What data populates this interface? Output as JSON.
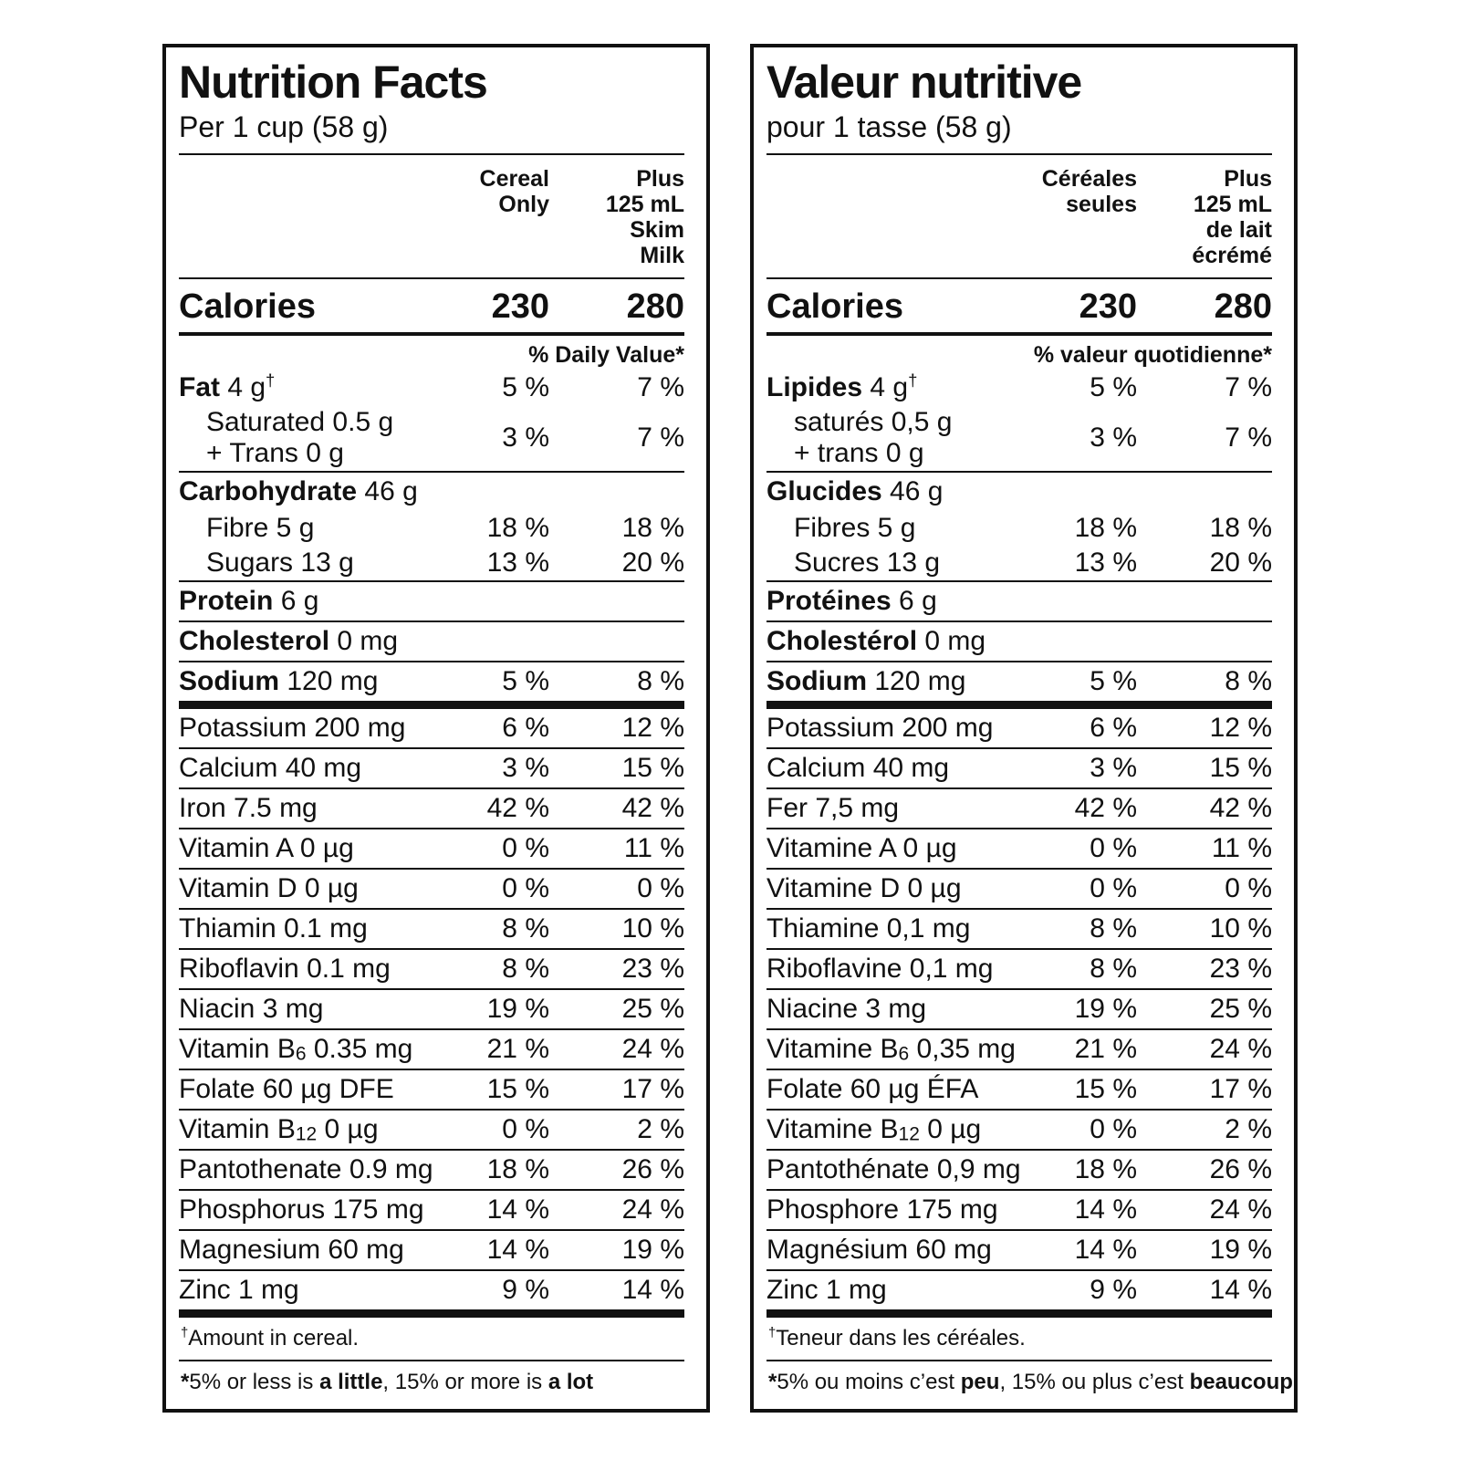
{
  "colors": {
    "background": "#ffffff",
    "text": "#111111",
    "border": "#111111"
  },
  "panels": [
    {
      "id": "english",
      "title": "Nutrition Facts",
      "serving": "Per 1 cup (58 g)",
      "columns": [
        [
          "Cereal",
          "Only"
        ],
        [
          "Plus",
          "125 mL",
          "Skim",
          "Milk"
        ]
      ],
      "calories": {
        "label": "Calories",
        "v1": "230",
        "v2": "280"
      },
      "dv_header": "% Daily Value*",
      "rows": [
        {
          "parts": [
            {
              "t": "Fat",
              "b": true
            },
            {
              "t": " 4 g"
            },
            {
              "t": "†",
              "sup": true
            }
          ],
          "v1": "5 %",
          "v2": "7 %",
          "rule": "none"
        },
        {
          "parts": [
            {
              "t": "Saturated 0.5 g"
            },
            {
              "br": true
            },
            {
              "t": "+ Trans 0 g"
            }
          ],
          "v1": "3 %",
          "v2": "7 %",
          "rule": "none",
          "indent": true
        },
        {
          "parts": [
            {
              "t": "Carbohydrate",
              "b": true
            },
            {
              "t": " 46 g"
            }
          ],
          "v1": "",
          "v2": "",
          "rule": "thin"
        },
        {
          "parts": [
            {
              "t": "Fibre 5 g"
            }
          ],
          "v1": "18 %",
          "v2": "18 %",
          "rule": "none",
          "indent": true
        },
        {
          "parts": [
            {
              "t": "Sugars 13 g"
            }
          ],
          "v1": "13 %",
          "v2": "20 %",
          "rule": "none",
          "indent": true
        },
        {
          "parts": [
            {
              "t": "Protein",
              "b": true
            },
            {
              "t": " 6 g"
            }
          ],
          "v1": "",
          "v2": "",
          "rule": "thin"
        },
        {
          "parts": [
            {
              "t": "Cholesterol",
              "b": true
            },
            {
              "t": " 0 mg"
            }
          ],
          "v1": "",
          "v2": "",
          "rule": "thin"
        },
        {
          "parts": [
            {
              "t": "Sodium",
              "b": true
            },
            {
              "t": " 120 mg"
            }
          ],
          "v1": "5 %",
          "v2": "8 %",
          "rule": "thin"
        },
        {
          "parts": [
            {
              "t": "Potassium 200 mg"
            }
          ],
          "v1": "6 %",
          "v2": "12 %",
          "rule": "thick"
        },
        {
          "parts": [
            {
              "t": "Calcium 40 mg"
            }
          ],
          "v1": "3 %",
          "v2": "15 %",
          "rule": "thin"
        },
        {
          "parts": [
            {
              "t": "Iron 7.5 mg"
            }
          ],
          "v1": "42 %",
          "v2": "42 %",
          "rule": "thin"
        },
        {
          "parts": [
            {
              "t": "Vitamin A 0 µg"
            }
          ],
          "v1": "0 %",
          "v2": "11 %",
          "rule": "thin"
        },
        {
          "parts": [
            {
              "t": "Vitamin D 0 µg"
            }
          ],
          "v1": "0 %",
          "v2": "0 %",
          "rule": "thin"
        },
        {
          "parts": [
            {
              "t": "Thiamin 0.1 mg"
            }
          ],
          "v1": "8 %",
          "v2": "10 %",
          "rule": "thin"
        },
        {
          "parts": [
            {
              "t": "Riboflavin 0.1 mg"
            }
          ],
          "v1": "8 %",
          "v2": "23 %",
          "rule": "thin"
        },
        {
          "parts": [
            {
              "t": "Niacin 3 mg"
            }
          ],
          "v1": "19 %",
          "v2": "25 %",
          "rule": "thin"
        },
        {
          "parts": [
            {
              "t": "Vitamin B"
            },
            {
              "t": "6",
              "sub": true
            },
            {
              "t": " 0.35 mg"
            }
          ],
          "v1": "21 %",
          "v2": "24 %",
          "rule": "thin"
        },
        {
          "parts": [
            {
              "t": "Folate 60 µg DFE"
            }
          ],
          "v1": "15 %",
          "v2": "17 %",
          "rule": "thin"
        },
        {
          "parts": [
            {
              "t": "Vitamin B"
            },
            {
              "t": "12",
              "sub": true
            },
            {
              "t": " 0 µg"
            }
          ],
          "v1": "0 %",
          "v2": "2 %",
          "rule": "thin"
        },
        {
          "parts": [
            {
              "t": "Pantothenate 0.9 mg"
            }
          ],
          "v1": "18 %",
          "v2": "26 %",
          "rule": "thin"
        },
        {
          "parts": [
            {
              "t": "Phosphorus 175 mg"
            }
          ],
          "v1": "14 %",
          "v2": "24 %",
          "rule": "thin"
        },
        {
          "parts": [
            {
              "t": "Magnesium 60 mg"
            }
          ],
          "v1": "14 %",
          "v2": "19 %",
          "rule": "thin"
        },
        {
          "parts": [
            {
              "t": "Zinc 1 mg"
            }
          ],
          "v1": "9 %",
          "v2": "14 %",
          "rule": "thin"
        }
      ],
      "footnotes": [
        {
          "parts": [
            {
              "t": "†",
              "sup": true
            },
            {
              "t": "Amount in cereal."
            }
          ]
        },
        {
          "parts": [
            {
              "t": "*",
              "b": true
            },
            {
              "t": "5% or less is "
            },
            {
              "t": "a little",
              "b": true
            },
            {
              "t": ", 15% or more is "
            },
            {
              "t": "a lot",
              "b": true
            }
          ]
        }
      ]
    },
    {
      "id": "french",
      "title": "Valeur nutritive",
      "serving": "pour 1 tasse (58 g)",
      "columns": [
        [
          "Céréales",
          "seules"
        ],
        [
          "Plus",
          "125 mL",
          "de lait",
          "écrémé"
        ]
      ],
      "calories": {
        "label": "Calories",
        "v1": "230",
        "v2": "280"
      },
      "dv_header": "% valeur quotidienne*",
      "rows": [
        {
          "parts": [
            {
              "t": "Lipides",
              "b": true
            },
            {
              "t": " 4 g"
            },
            {
              "t": "†",
              "sup": true
            }
          ],
          "v1": "5 %",
          "v2": "7 %",
          "rule": "none"
        },
        {
          "parts": [
            {
              "t": "saturés 0,5 g"
            },
            {
              "br": true
            },
            {
              "t": "+ trans 0 g"
            }
          ],
          "v1": "3 %",
          "v2": "7 %",
          "rule": "none",
          "indent": true
        },
        {
          "parts": [
            {
              "t": "Glucides",
              "b": true
            },
            {
              "t": " 46 g"
            }
          ],
          "v1": "",
          "v2": "",
          "rule": "thin"
        },
        {
          "parts": [
            {
              "t": "Fibres 5 g"
            }
          ],
          "v1": "18 %",
          "v2": "18 %",
          "rule": "none",
          "indent": true
        },
        {
          "parts": [
            {
              "t": "Sucres 13 g"
            }
          ],
          "v1": "13 %",
          "v2": "20 %",
          "rule": "none",
          "indent": true
        },
        {
          "parts": [
            {
              "t": "Protéines",
              "b": true
            },
            {
              "t": " 6 g"
            }
          ],
          "v1": "",
          "v2": "",
          "rule": "thin"
        },
        {
          "parts": [
            {
              "t": "Cholestérol",
              "b": true
            },
            {
              "t": " 0 mg"
            }
          ],
          "v1": "",
          "v2": "",
          "rule": "thin"
        },
        {
          "parts": [
            {
              "t": "Sodium",
              "b": true
            },
            {
              "t": " 120 mg"
            }
          ],
          "v1": "5 %",
          "v2": "8 %",
          "rule": "thin"
        },
        {
          "parts": [
            {
              "t": "Potassium 200 mg"
            }
          ],
          "v1": "6 %",
          "v2": "12 %",
          "rule": "thick"
        },
        {
          "parts": [
            {
              "t": "Calcium 40 mg"
            }
          ],
          "v1": "3 %",
          "v2": "15 %",
          "rule": "thin"
        },
        {
          "parts": [
            {
              "t": "Fer 7,5 mg"
            }
          ],
          "v1": "42 %",
          "v2": "42 %",
          "rule": "thin"
        },
        {
          "parts": [
            {
              "t": "Vitamine A 0 µg"
            }
          ],
          "v1": "0 %",
          "v2": "11 %",
          "rule": "thin"
        },
        {
          "parts": [
            {
              "t": "Vitamine D 0 µg"
            }
          ],
          "v1": "0 %",
          "v2": "0 %",
          "rule": "thin"
        },
        {
          "parts": [
            {
              "t": "Thiamine 0,1 mg"
            }
          ],
          "v1": "8 %",
          "v2": "10 %",
          "rule": "thin"
        },
        {
          "parts": [
            {
              "t": "Riboflavine 0,1 mg"
            }
          ],
          "v1": "8 %",
          "v2": "23 %",
          "rule": "thin"
        },
        {
          "parts": [
            {
              "t": "Niacine 3 mg"
            }
          ],
          "v1": "19 %",
          "v2": "25 %",
          "rule": "thin"
        },
        {
          "parts": [
            {
              "t": "Vitamine B"
            },
            {
              "t": "6",
              "sub": true
            },
            {
              "t": " 0,35 mg"
            }
          ],
          "v1": "21 %",
          "v2": "24 %",
          "rule": "thin"
        },
        {
          "parts": [
            {
              "t": "Folate 60 µg ÉFA"
            }
          ],
          "v1": "15 %",
          "v2": "17 %",
          "rule": "thin"
        },
        {
          "parts": [
            {
              "t": "Vitamine B"
            },
            {
              "t": "12",
              "sub": true
            },
            {
              "t": " 0 µg"
            }
          ],
          "v1": "0 %",
          "v2": "2 %",
          "rule": "thin"
        },
        {
          "parts": [
            {
              "t": "Pantothénate 0,9 mg"
            }
          ],
          "v1": "18 %",
          "v2": "26 %",
          "rule": "thin"
        },
        {
          "parts": [
            {
              "t": "Phosphore 175 mg"
            }
          ],
          "v1": "14 %",
          "v2": "24 %",
          "rule": "thin"
        },
        {
          "parts": [
            {
              "t": "Magnésium 60 mg"
            }
          ],
          "v1": "14 %",
          "v2": "19 %",
          "rule": "thin"
        },
        {
          "parts": [
            {
              "t": "Zinc 1 mg"
            }
          ],
          "v1": "9 %",
          "v2": "14 %",
          "rule": "thin"
        }
      ],
      "footnotes": [
        {
          "parts": [
            {
              "t": "†",
              "sup": true
            },
            {
              "t": "Teneur dans les céréales."
            }
          ]
        },
        {
          "parts": [
            {
              "t": "*",
              "b": true
            },
            {
              "t": "5% ou moins c’est "
            },
            {
              "t": "peu",
              "b": true
            },
            {
              "t": ", 15% ou plus c’est "
            },
            {
              "t": "beaucoup",
              "b": true
            }
          ]
        }
      ]
    }
  ]
}
